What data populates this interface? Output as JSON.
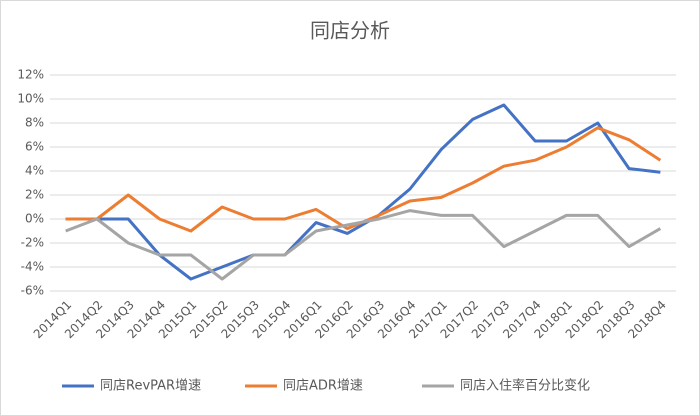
{
  "chart_data": {
    "type": "line",
    "title": "同店分析",
    "categories": [
      "2014Q1",
      "2014Q2",
      "2014Q3",
      "2014Q4",
      "2015Q1",
      "2015Q2",
      "2015Q3",
      "2015Q4",
      "2016Q1",
      "2016Q2",
      "2016Q3",
      "2016Q4",
      "2017Q1",
      "2017Q2",
      "2017Q3",
      "2017Q4",
      "2018Q1",
      "2018Q2",
      "2018Q3",
      "2018Q4"
    ],
    "series": [
      {
        "name": "同店RevPAR增速",
        "color": "#4472c4",
        "values": [
          0,
          0,
          0,
          -3,
          -5,
          -4,
          -3,
          -3,
          -0.3,
          -1.2,
          0.3,
          2.5,
          5.8,
          8.3,
          9.5,
          6.5,
          6.5,
          8,
          4.2,
          3.9
        ]
      },
      {
        "name": "同店ADR增速",
        "color": "#ed7d31",
        "values": [
          0,
          0,
          2,
          0,
          -1,
          1,
          0,
          0,
          0.8,
          -0.8,
          0.3,
          1.5,
          1.8,
          3,
          4.4,
          4.9,
          6,
          7.6,
          6.6,
          4.9
        ]
      },
      {
        "name": "同店入住率百分比变化",
        "color": "#a5a5a5",
        "values": [
          -1,
          0,
          -2,
          -3,
          -3,
          -5,
          -3,
          -3,
          -1,
          -0.5,
          0,
          0.7,
          0.3,
          0.3,
          -2.3,
          -1,
          0.3,
          0.3,
          -2.3,
          -0.8
        ]
      }
    ],
    "ylim": [
      -6,
      12
    ],
    "yticks": [
      {
        "value": -6,
        "label": "-6%"
      },
      {
        "value": -4,
        "label": "-4%"
      },
      {
        "value": -2,
        "label": "-2%"
      },
      {
        "value": 0,
        "label": "0%"
      },
      {
        "value": 2,
        "label": "2%"
      },
      {
        "value": 4,
        "label": "4%"
      },
      {
        "value": 6,
        "label": "6%"
      },
      {
        "value": 8,
        "label": "8%"
      },
      {
        "value": 10,
        "label": "10%"
      },
      {
        "value": 12,
        "label": "12%"
      }
    ],
    "grid": true,
    "legend": "bottom"
  }
}
